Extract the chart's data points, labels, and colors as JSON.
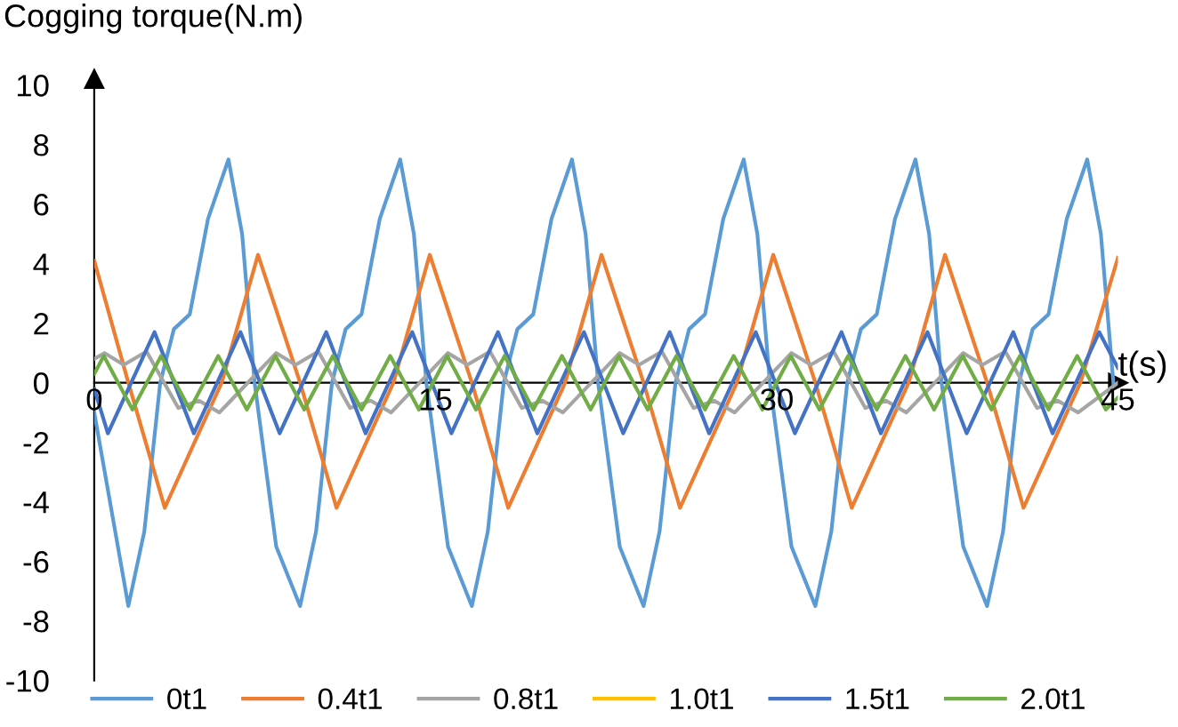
{
  "chart_data": {
    "type": "line",
    "ylabel": "Cogging torque(N.m)",
    "xlabel": "t(s)",
    "xlim": [
      0,
      45
    ],
    "xticks": [
      0,
      15,
      30,
      45
    ],
    "ylim": [
      -10,
      10
    ],
    "yticks": [
      -10,
      -8,
      -6,
      -4,
      -2,
      0,
      2,
      4,
      6,
      8,
      10
    ],
    "grid": false,
    "legend": "bottom",
    "marker": "none",
    "line_style": "solid",
    "series": [
      {
        "name": "0t1",
        "color": "#5b9bd5",
        "x": [
          0,
          1.5,
          2.2,
          2.9,
          3.5,
          4.2,
          5.0,
          5.9,
          6.5,
          7.05,
          8.0,
          9.05,
          9.75,
          10.45,
          11.05,
          11.75,
          12.55,
          13.45,
          14.05,
          14.6,
          15.55,
          16.6,
          17.3,
          18.0,
          18.6,
          19.3,
          20.1,
          21.0,
          21.6,
          22.15,
          23.1,
          24.15,
          24.85,
          25.55,
          26.15,
          26.85,
          27.65,
          28.55,
          29.15,
          29.7,
          30.65,
          31.7,
          32.4,
          33.1,
          33.7,
          34.4,
          35.2,
          36.1,
          36.7,
          37.25,
          38.2,
          39.25,
          39.95,
          40.65,
          41.25,
          41.95,
          42.75,
          43.65,
          44.25,
          44.8
        ],
        "values": [
          -1,
          -7.5,
          -5,
          0,
          1.8,
          2.3,
          5.5,
          7.5,
          5,
          0,
          -5.5,
          -7.5,
          -5,
          0,
          1.8,
          2.3,
          5.5,
          7.5,
          5,
          0,
          -5.5,
          -7.5,
          -5,
          0,
          1.8,
          2.3,
          5.5,
          7.5,
          5,
          0,
          -5.5,
          -7.5,
          -5,
          0,
          1.8,
          2.3,
          5.5,
          7.5,
          5,
          0,
          -5.5,
          -7.5,
          -5,
          0,
          1.8,
          2.3,
          5.5,
          7.5,
          5,
          0,
          -5.5,
          -7.5,
          -5,
          0,
          1.8,
          2.3,
          5.5,
          7.5,
          5,
          0
        ]
      },
      {
        "name": "0.4t1",
        "color": "#ed7d31",
        "x": [
          0,
          1.5,
          3.1,
          5.6,
          7.2,
          9.05,
          10.65,
          13.15,
          14.75,
          16.6,
          18.2,
          20.7,
          22.3,
          24.15,
          25.75,
          28.25,
          29.85,
          31.7,
          33.3,
          35.8,
          37.4,
          39.25,
          40.85,
          43.35,
          45
        ],
        "values": [
          4.1,
          0,
          -4.2,
          0,
          4.3,
          0,
          -4.2,
          0,
          4.3,
          0,
          -4.2,
          0,
          4.3,
          0,
          -4.2,
          0,
          4.3,
          0,
          -4.2,
          0,
          4.3,
          0,
          -4.2,
          0,
          4.2
        ]
      },
      {
        "name": "0.8t1",
        "color": "#a5a5a5",
        "x": [
          0,
          0.45,
          1.3,
          2.3,
          3.7,
          4.6,
          5.5,
          8.0,
          8.85,
          9.85,
          11.25,
          12.15,
          13.05,
          15.55,
          16.4,
          17.4,
          18.8,
          19.7,
          20.6,
          23.1,
          23.95,
          24.95,
          26.35,
          27.25,
          28.15,
          30.65,
          31.5,
          32.5,
          33.9,
          34.8,
          35.7,
          38.2,
          39.05,
          40.05,
          41.45,
          42.35,
          43.25,
          45
        ],
        "values": [
          0.8,
          1.0,
          0.6,
          1.05,
          -0.85,
          -0.6,
          -1.0,
          1.0,
          0.6,
          1.05,
          -0.85,
          -0.6,
          -1.0,
          1.0,
          0.6,
          1.05,
          -0.85,
          -0.6,
          -1.0,
          1.0,
          0.6,
          1.05,
          -0.85,
          -0.6,
          -1.0,
          1.0,
          0.6,
          1.05,
          -0.85,
          -0.6,
          -1.0,
          1.0,
          0.6,
          1.05,
          -0.85,
          -0.6,
          -1.0,
          0
        ]
      },
      {
        "name": "1.0t1",
        "color": "#ffc000"
      },
      {
        "name": "1.5t1",
        "color": "#4472c4",
        "x": [
          0,
          0.6,
          2.65,
          4.38,
          6.43,
          8.15,
          10.2,
          11.93,
          13.98,
          15.7,
          17.75,
          19.48,
          21.53,
          23.25,
          25.3,
          27.03,
          29.08,
          30.8,
          32.85,
          34.58,
          36.63,
          38.35,
          40.4,
          42.13,
          44.18,
          45
        ],
        "values": [
          -0.2,
          -1.7,
          1.7,
          -1.7,
          1.7,
          -1.7,
          1.7,
          -1.7,
          1.7,
          -1.7,
          1.7,
          -1.7,
          1.7,
          -1.7,
          1.7,
          -1.7,
          1.7,
          -1.7,
          1.7,
          -1.7,
          1.7,
          -1.7,
          1.7,
          -1.7,
          1.7,
          0.5
        ]
      },
      {
        "name": "2.0t1",
        "color": "#70ad47",
        "x": [
          0,
          0.42,
          1.68,
          2.94,
          4.2,
          5.45,
          6.71,
          7.97,
          9.23,
          10.49,
          11.75,
          13.01,
          14.27,
          15.52,
          16.78,
          18.04,
          19.3,
          20.56,
          21.82,
          23.07,
          24.33,
          25.59,
          26.85,
          28.11,
          29.37,
          30.62,
          31.88,
          33.14,
          34.4,
          35.66,
          36.92,
          38.18,
          39.44,
          40.69,
          41.95,
          43.21,
          44.47,
          45
        ],
        "values": [
          0.3,
          0.9,
          -0.9,
          0.9,
          -0.9,
          0.9,
          -0.9,
          0.9,
          -0.9,
          0.9,
          -0.9,
          0.9,
          -0.9,
          0.9,
          -0.9,
          0.9,
          -0.9,
          0.9,
          -0.9,
          0.9,
          -0.9,
          0.9,
          -0.9,
          0.9,
          -0.9,
          0.9,
          -0.9,
          0.9,
          -0.9,
          0.9,
          -0.9,
          0.9,
          -0.9,
          0.9,
          -0.9,
          0.9,
          -0.9,
          -0.5
        ]
      }
    ]
  }
}
